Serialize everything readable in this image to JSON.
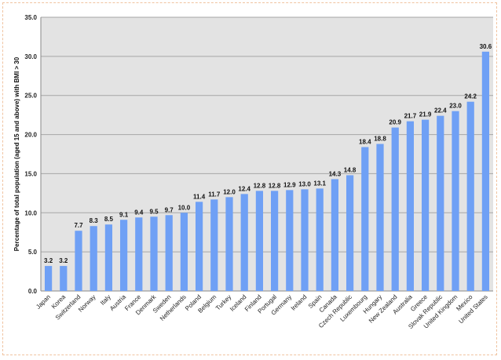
{
  "chart_data": {
    "type": "bar",
    "ylabel": "Percentage of total population (aged 15 and above) with BMI > 30",
    "ylim": [
      0,
      35
    ],
    "yticks": [
      "0.0",
      "5.0",
      "10.0",
      "15.0",
      "20.0",
      "25.0",
      "30.0",
      "35.0"
    ],
    "grid": true,
    "categories": [
      "Japan",
      "Korea",
      "Switzerland",
      "Norway",
      "Italy",
      "Austria",
      "France",
      "Denmark",
      "Sweden",
      "Netherlands",
      "Poland",
      "Belgium",
      "Turkey",
      "Iceland",
      "Finland",
      "Portugal",
      "Germany",
      "Ireland",
      "Spain",
      "Canada",
      "Czech Republic",
      "Luxembourg",
      "Hungary",
      "New Zealand",
      "Australia",
      "Greece",
      "Slovak Republic",
      "United Kingdom",
      "Mexico",
      "United States"
    ],
    "values": [
      3.2,
      3.2,
      7.7,
      8.3,
      8.5,
      9.1,
      9.4,
      9.5,
      9.7,
      10.0,
      11.4,
      11.7,
      12.0,
      12.4,
      12.8,
      12.8,
      12.9,
      13.0,
      13.1,
      14.3,
      14.8,
      18.4,
      18.8,
      20.9,
      21.7,
      21.9,
      22.4,
      23.0,
      24.2,
      30.6
    ],
    "data_labels": [
      "3.2",
      "3.2",
      "7.7",
      "8.3",
      "8.5",
      "9.1",
      "9.4",
      "9.5",
      "9.7",
      "10.0",
      "11.4",
      "11.7",
      "12.0",
      "12.4",
      "12.8",
      "12.8",
      "12.9",
      "13.0",
      "13.1",
      "14.3",
      "14.8",
      "18.4",
      "18.8",
      "20.9",
      "21.7",
      "21.9",
      "22.4",
      "23.0",
      "24.2",
      "30.6"
    ],
    "colors": {
      "bar": "#6fa0f5",
      "plot_bg": "#e3e3e3",
      "grid": "#a6a6a6"
    }
  }
}
